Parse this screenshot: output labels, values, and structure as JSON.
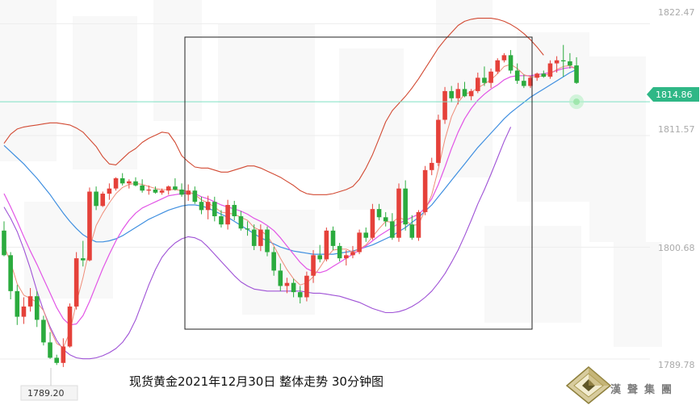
{
  "caption": "现货黄金2021年12月30日 整体走势  30分钟图",
  "brand": "漢聲集團",
  "chart_data": {
    "type": "candlestick",
    "title": "现货黄金2021年12月30日 整体走势  30分钟图",
    "ylim": [
      1788.6,
      1823.6
    ],
    "y_ticks": [
      "1822.47",
      "1811.57",
      "1800.68",
      "1789.78"
    ],
    "current_price": "1814.86",
    "period_low_label": "1789.20",
    "colors": {
      "up": "#e5413a",
      "down": "#2bab3e",
      "ma_fast": "#ef8c78",
      "ma_slow": "#e255e6",
      "ma_long": "#3f8fe0",
      "bb_upper": "#d24a33",
      "bb_lower": "#9f52d6",
      "price_line": "#7fe0c4",
      "price_tag": "#2fb786",
      "box": "#222222"
    },
    "candles": [
      [
        1802.3,
        1803.2,
        1799.8,
        1799.9
      ],
      [
        1799.9,
        1800.2,
        1795.6,
        1796.4
      ],
      [
        1796.4,
        1797.0,
        1793.1,
        1793.9
      ],
      [
        1793.9,
        1795.8,
        1793.2,
        1794.9
      ],
      [
        1794.9,
        1796.7,
        1794.4,
        1795.9
      ],
      [
        1795.9,
        1796.4,
        1792.9,
        1793.6
      ],
      [
        1793.6,
        1794.0,
        1791.1,
        1791.4
      ],
      [
        1791.4,
        1792.4,
        1789.8,
        1789.9
      ],
      [
        1789.9,
        1790.2,
        1789.2,
        1789.4
      ],
      [
        1789.4,
        1791.8,
        1789.0,
        1791.0
      ],
      [
        1791.0,
        1795.2,
        1790.9,
        1794.9
      ],
      [
        1794.9,
        1800.2,
        1794.6,
        1799.6
      ],
      [
        1799.6,
        1801.3,
        1798.8,
        1799.4
      ],
      [
        1799.4,
        1806.5,
        1799.3,
        1806.1
      ],
      [
        1806.1,
        1806.6,
        1804.3,
        1804.7
      ],
      [
        1804.7,
        1806.1,
        1804.6,
        1805.9
      ],
      [
        1805.9,
        1806.9,
        1805.3,
        1806.4
      ],
      [
        1806.4,
        1807.5,
        1806.2,
        1807.4
      ],
      [
        1807.4,
        1807.9,
        1806.7,
        1806.9
      ],
      [
        1806.9,
        1807.3,
        1806.4,
        1807.1
      ],
      [
        1807.1,
        1807.5,
        1806.6,
        1806.7
      ],
      [
        1806.7,
        1807.3,
        1806.0,
        1806.2
      ],
      [
        1806.2,
        1806.7,
        1805.8,
        1806.3
      ],
      [
        1806.3,
        1806.6,
        1805.9,
        1806.0
      ],
      [
        1806.0,
        1806.4,
        1805.8,
        1806.2
      ],
      [
        1806.2,
        1806.7,
        1805.8,
        1806.6
      ],
      [
        1806.6,
        1807.4,
        1806.2,
        1806.3
      ],
      [
        1806.3,
        1806.9,
        1805.6,
        1805.8
      ],
      [
        1805.8,
        1806.8,
        1805.2,
        1806.2
      ],
      [
        1806.2,
        1806.6,
        1804.9,
        1805.1
      ],
      [
        1805.1,
        1805.6,
        1803.9,
        1804.3
      ],
      [
        1804.3,
        1805.7,
        1803.4,
        1805.1
      ],
      [
        1805.1,
        1805.6,
        1803.2,
        1803.7
      ],
      [
        1803.7,
        1804.3,
        1802.6,
        1802.9
      ],
      [
        1802.9,
        1805.3,
        1802.4,
        1804.8
      ],
      [
        1804.8,
        1805.2,
        1803.3,
        1803.7
      ],
      [
        1803.7,
        1804.2,
        1802.3,
        1802.5
      ],
      [
        1802.5,
        1803.2,
        1801.8,
        1802.4
      ],
      [
        1802.4,
        1802.9,
        1800.4,
        1800.8
      ],
      [
        1800.8,
        1802.9,
        1800.3,
        1802.4
      ],
      [
        1802.4,
        1802.7,
        1799.8,
        1800.2
      ],
      [
        1800.2,
        1800.7,
        1797.9,
        1798.4
      ],
      [
        1798.4,
        1799.1,
        1796.4,
        1796.9
      ],
      [
        1796.9,
        1797.7,
        1796.2,
        1797.2
      ],
      [
        1797.2,
        1797.6,
        1795.8,
        1796.3
      ],
      [
        1796.3,
        1796.9,
        1795.2,
        1795.8
      ],
      [
        1795.8,
        1798.3,
        1795.4,
        1797.9
      ],
      [
        1797.9,
        1800.4,
        1797.2,
        1799.9
      ],
      [
        1799.9,
        1800.9,
        1799.2,
        1799.5
      ],
      [
        1799.5,
        1802.6,
        1799.3,
        1802.3
      ],
      [
        1802.3,
        1802.7,
        1800.4,
        1800.8
      ],
      [
        1800.8,
        1801.1,
        1799.3,
        1799.6
      ],
      [
        1799.6,
        1800.4,
        1798.9,
        1799.9
      ],
      [
        1799.9,
        1800.8,
        1799.6,
        1800.2
      ],
      [
        1800.2,
        1802.4,
        1800.0,
        1802.1
      ],
      [
        1802.1,
        1802.6,
        1801.2,
        1801.6
      ],
      [
        1801.6,
        1804.9,
        1801.4,
        1804.4
      ],
      [
        1804.4,
        1804.9,
        1803.3,
        1803.6
      ],
      [
        1803.6,
        1804.1,
        1802.7,
        1803.2
      ],
      [
        1803.2,
        1804.0,
        1801.4,
        1801.6
      ],
      [
        1801.6,
        1806.9,
        1801.2,
        1806.4
      ],
      [
        1806.4,
        1807.2,
        1802.3,
        1802.9
      ],
      [
        1802.9,
        1803.8,
        1801.4,
        1801.6
      ],
      [
        1801.6,
        1804.3,
        1801.3,
        1804.1
      ],
      [
        1804.1,
        1808.6,
        1803.8,
        1808.2
      ],
      [
        1808.2,
        1809.4,
        1807.7,
        1808.9
      ],
      [
        1808.9,
        1813.6,
        1808.6,
        1813.1
      ],
      [
        1813.1,
        1816.3,
        1812.7,
        1815.9
      ],
      [
        1815.9,
        1816.4,
        1814.8,
        1815.2
      ],
      [
        1815.2,
        1816.7,
        1814.6,
        1816.1
      ],
      [
        1816.1,
        1816.8,
        1815.3,
        1815.4
      ],
      [
        1815.4,
        1816.1,
        1815.0,
        1815.9
      ],
      [
        1815.9,
        1817.7,
        1815.7,
        1817.2
      ],
      [
        1817.2,
        1818.3,
        1816.4,
        1816.7
      ],
      [
        1816.7,
        1818.1,
        1816.2,
        1817.8
      ],
      [
        1817.8,
        1819.1,
        1817.6,
        1818.9
      ],
      [
        1818.9,
        1819.6,
        1818.7,
        1819.4
      ],
      [
        1819.4,
        1819.9,
        1817.6,
        1817.9
      ],
      [
        1817.9,
        1818.6,
        1816.6,
        1816.9
      ],
      [
        1816.9,
        1817.5,
        1816.2,
        1816.4
      ],
      [
        1816.4,
        1817.4,
        1816.2,
        1817.2
      ],
      [
        1817.2,
        1817.7,
        1816.9,
        1817.6
      ],
      [
        1817.6,
        1817.9,
        1817.2,
        1817.3
      ],
      [
        1817.3,
        1818.9,
        1817.1,
        1818.6
      ],
      [
        1818.6,
        1819.3,
        1817.7,
        1818.9
      ],
      [
        1818.9,
        1820.4,
        1817.3,
        1818.8
      ],
      [
        1818.8,
        1819.6,
        1818.1,
        1818.4
      ],
      [
        1818.4,
        1819.2,
        1816.6,
        1816.7
      ]
    ],
    "ma_fast": [
      1800.8,
      1799.2,
      1797.1,
      1796.0,
      1795.7,
      1795.3,
      1794.5,
      1792.7,
      1791.3,
      1790.9,
      1792.4,
      1795.3,
      1797.7,
      1800.6,
      1802.8,
      1804.0,
      1805.0,
      1805.9,
      1806.5,
      1806.8,
      1806.9,
      1806.8,
      1806.6,
      1806.4,
      1806.3,
      1806.3,
      1806.3,
      1806.2,
      1806.1,
      1805.8,
      1805.3,
      1805.0,
      1804.6,
      1804.1,
      1804.0,
      1803.9,
      1803.6,
      1803.3,
      1802.6,
      1802.3,
      1801.8,
      1800.8,
      1799.6,
      1798.5,
      1797.6,
      1797.0,
      1797.2,
      1797.8,
      1798.7,
      1799.7,
      1800.4,
      1800.5,
      1800.5,
      1800.2,
      1800.5,
      1800.9,
      1801.7,
      1802.5,
      1803.2,
      1803.1,
      1803.6,
      1803.3,
      1802.8,
      1802.9,
      1804.3,
      1805.8,
      1808.3,
      1811.2,
      1813.4,
      1814.8,
      1815.6,
      1815.8,
      1816.2,
      1816.6,
      1817.0,
      1817.6,
      1818.3,
      1818.5,
      1818.1,
      1817.5,
      1817.3,
      1817.3,
      1817.4,
      1817.6,
      1818.0,
      1818.3,
      1818.4,
      1818.0
    ],
    "ma_slow": [
      1805.9,
      1804.6,
      1803.2,
      1801.7,
      1800.3,
      1799.0,
      1797.6,
      1796.2,
      1794.8,
      1793.7,
      1793.1,
      1793.2,
      1794.0,
      1795.4,
      1797.0,
      1798.6,
      1800.0,
      1801.3,
      1802.4,
      1803.3,
      1804.0,
      1804.5,
      1804.8,
      1805.1,
      1805.4,
      1805.7,
      1805.8,
      1805.9,
      1806.0,
      1805.9,
      1805.6,
      1805.4,
      1805.1,
      1804.8,
      1804.6,
      1804.4,
      1804.2,
      1803.9,
      1803.5,
      1803.2,
      1802.8,
      1802.3,
      1801.6,
      1800.8,
      1800.0,
      1799.2,
      1798.6,
      1798.3,
      1798.2,
      1798.4,
      1798.8,
      1799.2,
      1799.6,
      1800.0,
      1800.4,
      1800.8,
      1801.3,
      1801.8,
      1802.2,
      1802.6,
      1803.0,
      1803.3,
      1803.6,
      1803.9,
      1804.5,
      1805.4,
      1806.8,
      1808.5,
      1810.3,
      1811.9,
      1813.2,
      1814.2,
      1815.0,
      1815.6,
      1816.1,
      1816.5,
      1817.0,
      1817.3,
      1817.4,
      1817.4,
      1817.4,
      1817.5,
      1817.6,
      1817.7,
      1817.9,
      1818.1,
      1818.2,
      1818.2
    ],
    "ma_long": [
      1810.6,
      1810.0,
      1809.4,
      1808.8,
      1808.1,
      1807.4,
      1806.6,
      1805.8,
      1804.9,
      1804.0,
      1803.2,
      1802.5,
      1801.9,
      1801.5,
      1801.2,
      1801.2,
      1801.3,
      1801.5,
      1801.8,
      1802.2,
      1802.6,
      1803.0,
      1803.4,
      1803.7,
      1804.0,
      1804.3,
      1804.5,
      1804.7,
      1804.8,
      1804.8,
      1804.7,
      1804.5,
      1804.2,
      1803.9,
      1803.6,
      1803.2,
      1802.8,
      1802.4,
      1802.0,
      1801.6,
      1801.3,
      1801.0,
      1800.7,
      1800.5,
      1800.3,
      1800.2,
      1800.1,
      1800.0,
      1800.0,
      1800.0,
      1800.0,
      1800.1,
      1800.2,
      1800.3,
      1800.5,
      1800.7,
      1800.9,
      1801.2,
      1801.5,
      1801.8,
      1802.2,
      1802.6,
      1803.1,
      1803.6,
      1804.2,
      1804.8,
      1805.6,
      1806.4,
      1807.2,
      1808.0,
      1808.8,
      1809.6,
      1810.4,
      1811.1,
      1811.8,
      1812.5,
      1813.2,
      1813.8,
      1814.3,
      1814.8,
      1815.3,
      1815.7,
      1816.1,
      1816.5,
      1816.9,
      1817.3,
      1817.7,
      1818.0
    ],
    "bb_upper": [
      1810.8,
      1811.7,
      1812.2,
      1812.4,
      1812.5,
      1812.6,
      1812.7,
      1812.8,
      1812.8,
      1812.7,
      1812.6,
      1812.3,
      1811.9,
      1811.2,
      1810.5,
      1809.5,
      1808.8,
      1808.7,
      1809.3,
      1809.9,
      1810.3,
      1810.9,
      1811.3,
      1811.6,
      1811.9,
      1811.8,
      1810.9,
      1809.6,
      1809.0,
      1808.5,
      1808.4,
      1808.4,
      1808.2,
      1808.0,
      1808.0,
      1808.2,
      1808.4,
      1808.6,
      1808.6,
      1808.4,
      1808.1,
      1807.8,
      1807.5,
      1807.1,
      1806.7,
      1806.2,
      1805.9,
      1805.8,
      1805.8,
      1805.8,
      1805.9,
      1806.1,
      1806.3,
      1806.6,
      1807.3,
      1808.4,
      1809.7,
      1811.3,
      1812.9,
      1814.0,
      1814.7,
      1815.4,
      1816.2,
      1817.1,
      1818.1,
      1819.1,
      1820.1,
      1820.9,
      1821.6,
      1822.3,
      1822.7,
      1822.9,
      1823.0,
      1823.0,
      1823.0,
      1822.9,
      1822.7,
      1822.4,
      1822.0,
      1821.5,
      1820.9,
      1820.2,
      1819.4
    ],
    "bb_lower": [
      1804.6,
      1803.5,
      1802.2,
      1800.5,
      1798.6,
      1796.4,
      1794.5,
      1792.9,
      1791.6,
      1790.7,
      1790.2,
      1789.9,
      1789.8,
      1789.8,
      1789.9,
      1790.1,
      1790.4,
      1790.8,
      1791.4,
      1792.3,
      1793.6,
      1795.3,
      1797.0,
      1798.5,
      1799.7,
      1800.5,
      1801.1,
      1801.5,
      1801.7,
      1801.6,
      1801.3,
      1800.7,
      1800.0,
      1799.3,
      1798.6,
      1797.9,
      1797.3,
      1796.9,
      1796.6,
      1796.5,
      1796.4,
      1796.4,
      1796.4,
      1796.4,
      1796.4,
      1796.4,
      1796.3,
      1796.2,
      1796.2,
      1796.1,
      1796.0,
      1795.9,
      1795.7,
      1795.5,
      1795.3,
      1795.0,
      1794.7,
      1794.5,
      1794.3,
      1794.3,
      1794.4,
      1794.6,
      1794.9,
      1795.3,
      1795.8,
      1796.4,
      1797.2,
      1798.1,
      1799.2,
      1800.4,
      1801.8,
      1803.3,
      1804.9,
      1806.3,
      1807.8,
      1809.4,
      1811.0,
      1812.4
    ]
  }
}
